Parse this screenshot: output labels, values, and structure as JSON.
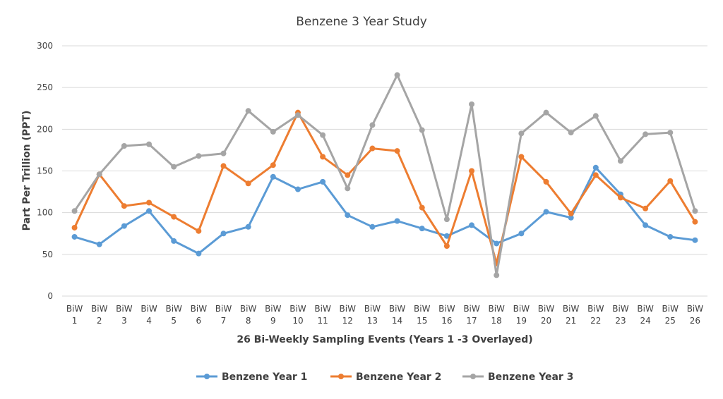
{
  "chart_data": {
    "type": "line",
    "title": "Benzene 3 Year Study",
    "xlabel": "26 Bi-Weekly Sampling Events (Years 1 -3 Overlayed)",
    "ylabel": "Part Per Trillion (PPT)",
    "ylim": [
      0,
      300
    ],
    "yticks": [
      0,
      50,
      100,
      150,
      200,
      250,
      300
    ],
    "grid": true,
    "legend_position": "bottom",
    "categories": [
      [
        "BiW",
        "1"
      ],
      [
        "BiW",
        "2"
      ],
      [
        "BiW",
        "3"
      ],
      [
        "BiW",
        "4"
      ],
      [
        "BiW",
        "5"
      ],
      [
        "BiW",
        "6"
      ],
      [
        "BiW",
        "7"
      ],
      [
        "BiW",
        "8"
      ],
      [
        "BiW",
        "9"
      ],
      [
        "BiW",
        "10"
      ],
      [
        "BiW",
        "11"
      ],
      [
        "BiW",
        "12"
      ],
      [
        "BiW",
        "13"
      ],
      [
        "BiW",
        "14"
      ],
      [
        "BiW",
        "15"
      ],
      [
        "BiW",
        "16"
      ],
      [
        "BiW",
        "17"
      ],
      [
        "BiW",
        "18"
      ],
      [
        "BiW",
        "19"
      ],
      [
        "BiW",
        "20"
      ],
      [
        "BiW",
        "21"
      ],
      [
        "BiW",
        "22"
      ],
      [
        "BiW",
        "23"
      ],
      [
        "BiW",
        "24"
      ],
      [
        "BiW",
        "25"
      ],
      [
        "BiW",
        "26"
      ]
    ],
    "series": [
      {
        "name": "Benzene Year 1",
        "color": "#5b9bd5",
        "values": [
          71,
          62,
          84,
          102,
          66,
          51,
          75,
          83,
          143,
          128,
          137,
          97,
          83,
          90,
          81,
          72,
          85,
          63,
          75,
          101,
          94,
          154,
          122,
          85,
          71,
          67
        ]
      },
      {
        "name": "Benzene Year 2",
        "color": "#ed7d31",
        "values": [
          82,
          146,
          108,
          112,
          95,
          78,
          156,
          135,
          157,
          220,
          167,
          145,
          177,
          174,
          106,
          60,
          150,
          39,
          167,
          137,
          99,
          145,
          118,
          105,
          138,
          89
        ]
      },
      {
        "name": "Benzene Year 3",
        "color": "#a5a5a5",
        "values": [
          102,
          146,
          180,
          182,
          155,
          168,
          171,
          222,
          197,
          217,
          193,
          129,
          205,
          265,
          199,
          92,
          230,
          25,
          195,
          220,
          196,
          216,
          162,
          194,
          196,
          102
        ]
      }
    ]
  }
}
